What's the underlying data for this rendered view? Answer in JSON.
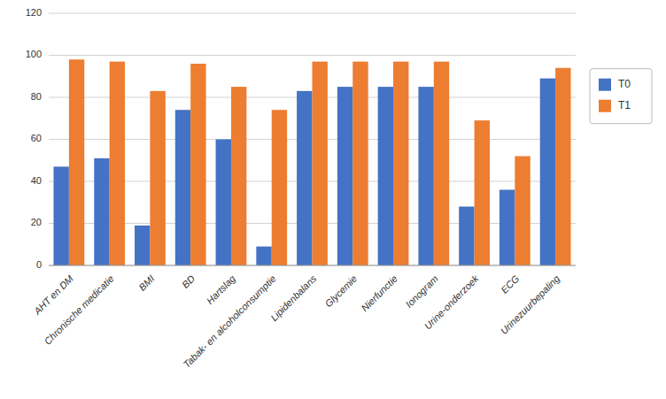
{
  "chart_data": {
    "type": "bar",
    "categories": [
      "AHT en DM",
      "Chronische medicatie",
      "BMI",
      "BD",
      "Hartslag",
      "Tabak- en alcoholconsumptie",
      "Lipidenbalans",
      "Glycemie",
      "Nierfunctie",
      "Ionogram",
      "Urine-onderzoek",
      "ECG",
      "Urinezuurbepaling"
    ],
    "series": [
      {
        "name": "T0",
        "color": "#4472C4",
        "values": [
          47,
          51,
          19,
          74,
          60,
          9,
          83,
          85,
          85,
          85,
          28,
          36,
          89
        ]
      },
      {
        "name": "T1",
        "color": "#ED7D31",
        "values": [
          98,
          97,
          83,
          96,
          85,
          74,
          97,
          97,
          97,
          97,
          69,
          52,
          94
        ]
      }
    ],
    "ylim": [
      0,
      120
    ],
    "yticks": [
      0,
      20,
      40,
      60,
      80,
      100,
      120
    ],
    "grid": true,
    "legend": "right"
  }
}
